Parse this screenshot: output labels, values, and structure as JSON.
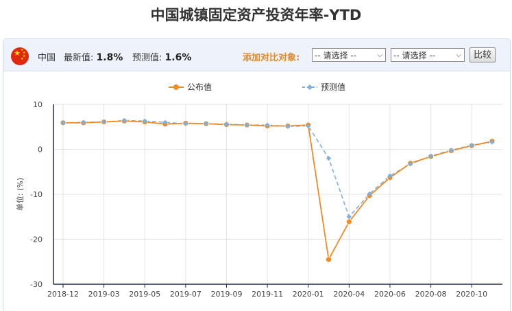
{
  "title": "中国城镇固定资产投资年率-YTD",
  "info": {
    "country": "中国",
    "latest_label": "最新值:",
    "latest_value": "1.8%",
    "forecast_label": "预测值:",
    "forecast_value": "1.6%",
    "compare_label": "添加对比对象:",
    "select1": "-- 请选择 --",
    "select2": "-- 请选择 --",
    "compare_button": "比较"
  },
  "colors": {
    "actual": "#f08a24",
    "forecast": "#7fb0dd",
    "accent": "#e08a2c"
  },
  "chart_data": {
    "type": "line",
    "x": [
      "2018-12",
      "2019-01",
      "2019-03",
      "2019-04",
      "2019-05",
      "2019-06",
      "2019-07",
      "2019-08",
      "2019-09",
      "2019-10",
      "2019-11",
      "2019-12",
      "2020-01",
      "2020-02",
      "2020-04",
      "2020-05",
      "2020-06",
      "2020-07",
      "2020-08",
      "2020-09",
      "2020-10",
      "2020-11"
    ],
    "x_ticks": [
      "2018-12",
      "2019-03",
      "2019-05",
      "2019-07",
      "2019-09",
      "2019-11",
      "2020-01",
      "2020-04",
      "2020-06",
      "2020-08",
      "2020-10"
    ],
    "series": [
      {
        "name": "公布值",
        "values": [
          5.9,
          5.9,
          6.1,
          6.3,
          6.1,
          5.6,
          5.8,
          5.7,
          5.5,
          5.4,
          5.2,
          5.2,
          5.4,
          -24.5,
          -16.1,
          -10.3,
          -6.3,
          -3.1,
          -1.6,
          -0.3,
          0.8,
          1.8
        ]
      },
      {
        "name": "预测值",
        "values": [
          5.9,
          6.0,
          6.1,
          6.4,
          6.3,
          6.0,
          5.7,
          5.7,
          5.6,
          5.4,
          5.4,
          5.1,
          5.2,
          -2.0,
          -15.0,
          -9.9,
          -5.9,
          -3.3,
          -1.5,
          -0.2,
          0.9,
          1.6
        ]
      }
    ],
    "ylim": [
      -30,
      10
    ],
    "yticks": [
      10,
      0,
      -10,
      -20,
      -30
    ],
    "ylabel": "单位: (%)",
    "legend": "top-center",
    "grid": true
  }
}
